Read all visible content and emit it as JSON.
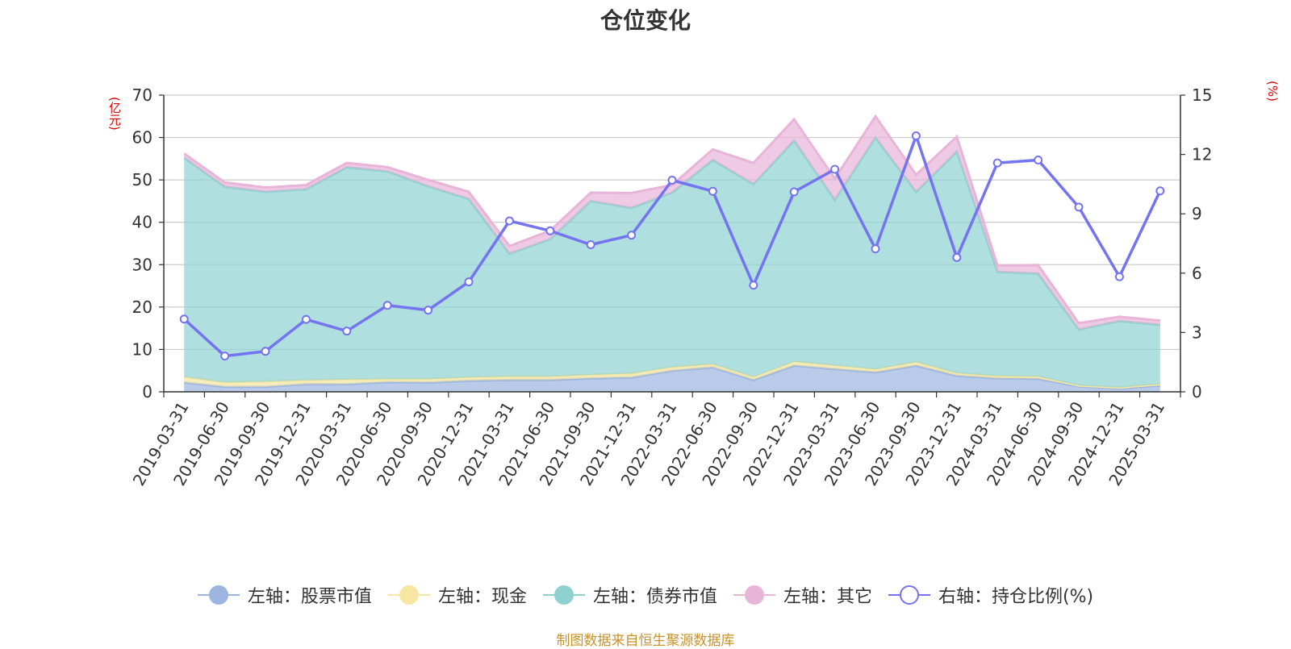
{
  "chart_data": {
    "type": "area",
    "title": "仓位变化",
    "left_axis_unit": "(亿元)",
    "right_axis_unit": "(%)",
    "left_ylim": [
      0,
      70
    ],
    "left_ticks": [
      0,
      10,
      20,
      30,
      40,
      50,
      60,
      70
    ],
    "right_ylim": [
      0,
      15
    ],
    "right_ticks": [
      0,
      3,
      6,
      9,
      12,
      15
    ],
    "grid": true,
    "legend_position": "bottom",
    "categories": [
      "2019-03-31",
      "2019-06-30",
      "2019-09-30",
      "2019-12-31",
      "2020-03-31",
      "2020-06-30",
      "2020-09-30",
      "2020-12-31",
      "2021-03-31",
      "2021-06-30",
      "2021-09-30",
      "2021-12-31",
      "2022-03-31",
      "2022-06-30",
      "2022-09-30",
      "2022-12-31",
      "2023-03-31",
      "2023-06-30",
      "2023-09-30",
      "2023-12-31",
      "2024-03-31",
      "2024-06-30",
      "2024-09-30",
      "2024-12-31",
      "2025-03-31"
    ],
    "series": [
      {
        "name": "左轴：股票市值",
        "axis": "left",
        "kind": "stacked-area",
        "color": "#9bb5e0",
        "values": [
          2.2,
          1.2,
          1.2,
          1.8,
          1.8,
          2.3,
          2.2,
          2.6,
          2.8,
          2.8,
          3.2,
          3.4,
          5.0,
          5.8,
          2.8,
          6.2,
          5.4,
          4.6,
          6.2,
          3.8,
          3.2,
          3.1,
          1.3,
          0.8,
          1.5
        ]
      },
      {
        "name": "左轴：现金",
        "axis": "left",
        "kind": "stacked-area",
        "color": "#f5e6a3",
        "values": [
          1.3,
          1.0,
          1.2,
          0.9,
          1.1,
          0.7,
          0.8,
          0.8,
          0.8,
          0.8,
          0.8,
          0.9,
          0.8,
          0.7,
          0.7,
          0.9,
          0.8,
          0.7,
          0.8,
          0.6,
          0.5,
          0.5,
          0.2,
          0.2,
          0.3
        ]
      },
      {
        "name": "左轴：债券市值",
        "axis": "left",
        "kind": "stacked-area",
        "color": "#8fd1d1",
        "values": [
          51.7,
          46.2,
          44.8,
          45.1,
          50.1,
          49.0,
          45.5,
          42.1,
          29.0,
          32.4,
          41.0,
          39.1,
          41.2,
          48.2,
          45.5,
          52.2,
          39.1,
          54.7,
          40.2,
          52.3,
          24.6,
          24.3,
          13.2,
          15.7,
          14.0
        ]
      },
      {
        "name": "左轴：其它",
        "axis": "left",
        "kind": "stacked-area",
        "color": "#e8b4d8",
        "values": [
          1.0,
          1.0,
          1.0,
          1.0,
          1.0,
          1.0,
          1.5,
          1.7,
          1.8,
          2.0,
          2.0,
          3.5,
          1.8,
          2.5,
          5.0,
          5.0,
          5.0,
          5.0,
          4.0,
          3.5,
          1.5,
          2.0,
          1.5,
          1.0,
          1.0
        ]
      },
      {
        "name": "右轴：持仓比例(%)",
        "axis": "right",
        "kind": "line",
        "color": "#7474f0",
        "values": [
          3.68,
          1.81,
          2.05,
          3.66,
          3.07,
          4.37,
          4.13,
          5.56,
          8.64,
          8.14,
          7.44,
          7.92,
          10.7,
          10.14,
          5.39,
          10.11,
          11.25,
          7.23,
          12.94,
          6.79,
          11.57,
          11.72,
          9.34,
          5.82,
          10.16
        ]
      }
    ]
  },
  "footer": {
    "source": "制图数据来自恒生聚源数据库"
  }
}
